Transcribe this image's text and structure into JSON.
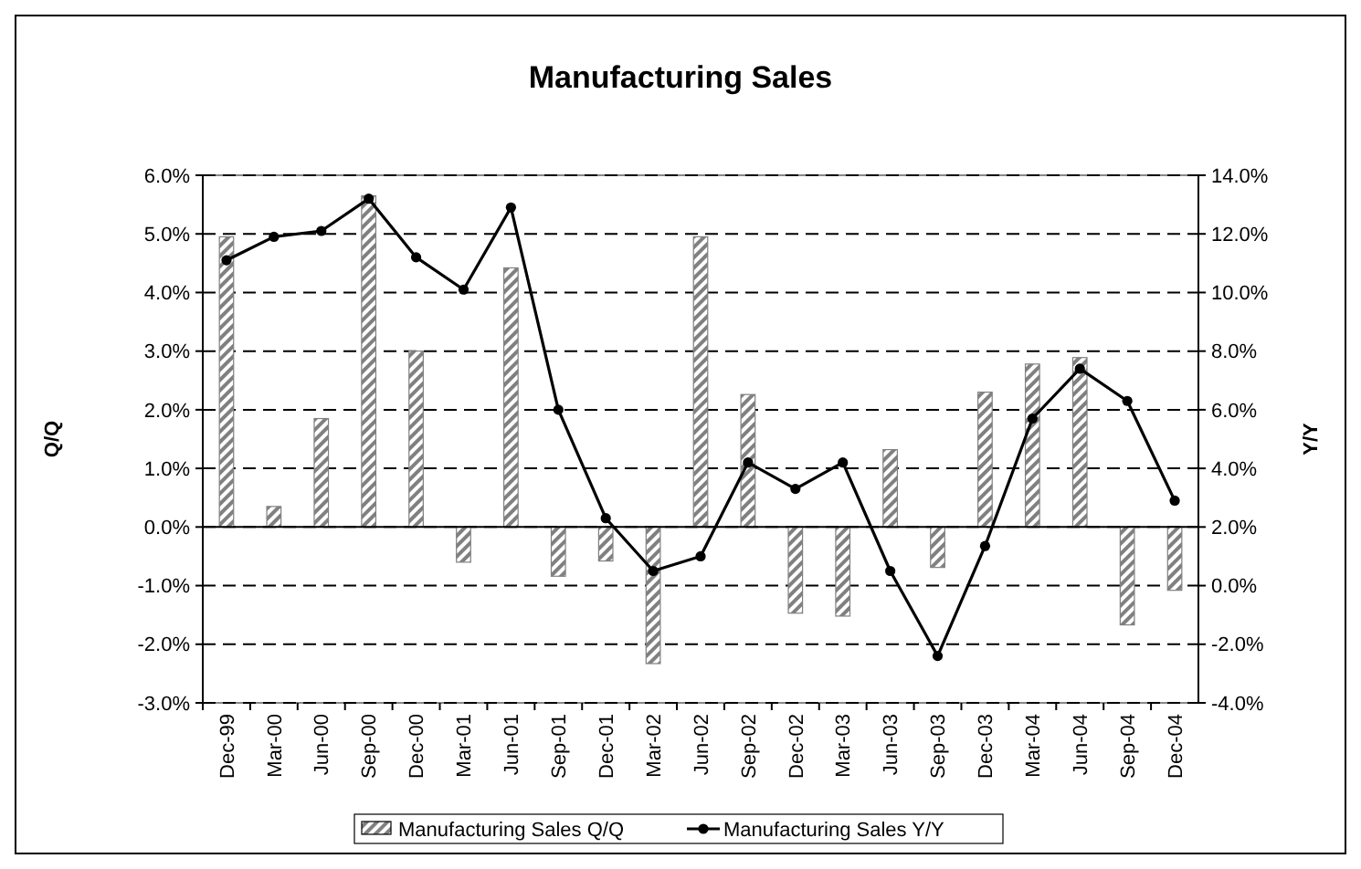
{
  "chart_data": {
    "type": "bar",
    "title": "Manufacturing Sales",
    "ylabel": "Q/Q",
    "y2label": "Y/Y",
    "categories": [
      "Dec-99",
      "Mar-00",
      "Jun-00",
      "Sep-00",
      "Dec-00",
      "Mar-01",
      "Jun-01",
      "Sep-01",
      "Dec-01",
      "Mar-02",
      "Jun-02",
      "Sep-02",
      "Dec-02",
      "Mar-03",
      "Jun-03",
      "Sep-03",
      "Dec-03",
      "Mar-04",
      "Jun-04",
      "Sep-04",
      "Dec-04"
    ],
    "series": [
      {
        "name": "Manufacturing Sales Q/Q",
        "color": "#808080",
        "values": [
          4.95,
          0.35,
          1.85,
          5.65,
          3.0,
          -0.6,
          4.42,
          -0.84,
          -0.58,
          -2.33,
          4.95,
          2.26,
          -1.47,
          -1.52,
          1.32,
          -0.69,
          2.3,
          2.78,
          2.89,
          -1.67,
          -1.08
        ]
      },
      {
        "name": "Manufacturing Sales Y/Y",
        "type": "line",
        "axis": "y2",
        "color": "#000000",
        "marker": "circle",
        "values": [
          11.1,
          11.9,
          12.1,
          13.2,
          11.2,
          10.1,
          12.9,
          6.0,
          2.3,
          0.5,
          1.0,
          4.2,
          3.3,
          4.2,
          0.5,
          -2.4,
          1.35,
          5.7,
          7.4,
          6.3,
          2.9
        ]
      }
    ],
    "ylim": [
      -3,
      6
    ],
    "yticks": [
      {
        "value": -3,
        "label": "-3.0%"
      },
      {
        "value": -2,
        "label": "-2.0%"
      },
      {
        "value": -1,
        "label": "-1.0%"
      },
      {
        "value": 0,
        "label": "0.0%"
      },
      {
        "value": 1,
        "label": "1.0%"
      },
      {
        "value": 2,
        "label": "2.0%"
      },
      {
        "value": 3,
        "label": "3.0%"
      },
      {
        "value": 4,
        "label": "4.0%"
      },
      {
        "value": 5,
        "label": "5.0%"
      },
      {
        "value": 6,
        "label": "6.0%"
      }
    ],
    "y2lim": [
      -4,
      14
    ],
    "y2ticks": [
      {
        "value": -4,
        "label": "-4.0%"
      },
      {
        "value": -2,
        "label": "-2.0%"
      },
      {
        "value": 0,
        "label": "0.0%"
      },
      {
        "value": 2,
        "label": "2.0%"
      },
      {
        "value": 4,
        "label": "4.0%"
      },
      {
        "value": 6,
        "label": "6.0%"
      },
      {
        "value": 8,
        "label": "8.0%"
      },
      {
        "value": 10,
        "label": "10.0%"
      },
      {
        "value": 12,
        "label": "12.0%"
      },
      {
        "value": 14,
        "label": "14.0%"
      }
    ],
    "grid": "y",
    "legend": "bottom"
  }
}
